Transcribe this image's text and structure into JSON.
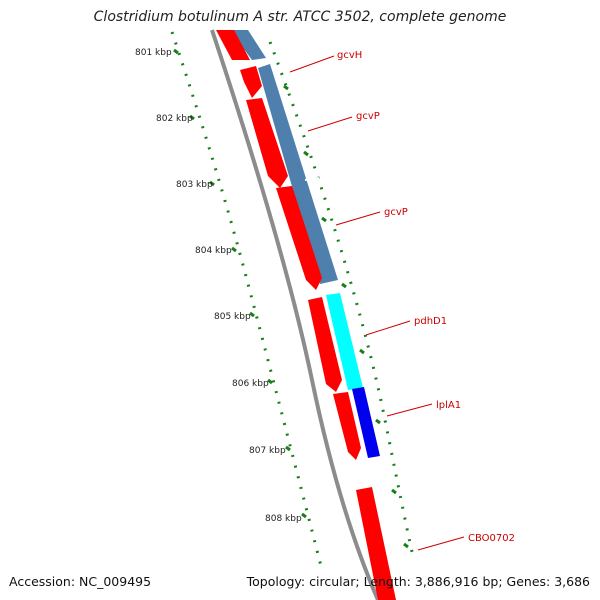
{
  "title": "Clostridium botulinum A str. ATCC 3502, complete genome",
  "footer": {
    "accession": "Accession: NC_009495",
    "summary": "Topology: circular; Length: 3,886,916 bp; Genes: 3,686"
  },
  "ticks": [
    "801 kbp",
    "802 kbp",
    "803 kbp",
    "804 kbp",
    "805 kbp",
    "806 kbp",
    "807 kbp",
    "808 kbp"
  ],
  "genes": [
    {
      "label": "gcvH"
    },
    {
      "label": "gcvP"
    },
    {
      "label": "gcvP"
    },
    {
      "label": "pdhD1"
    },
    {
      "label": "lplA1"
    },
    {
      "label": "CBO0702"
    }
  ],
  "colors": {
    "cds": "#ff0000",
    "steelblue": "#4f7fad",
    "cyan": "#00ffff",
    "blue": "#0000ee",
    "backbone": "#8c8c8c",
    "ticks": "#1a7f1a",
    "label": "#cc0000"
  }
}
